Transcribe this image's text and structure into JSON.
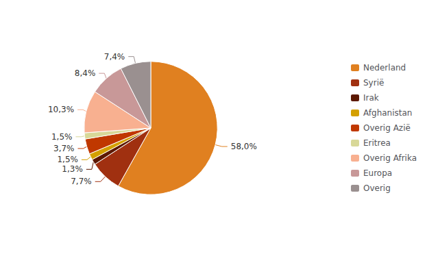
{
  "chart_data": {
    "type": "pie",
    "categories": [
      "Nederland",
      "Syrië",
      "Irak",
      "Afghanistan",
      "Overig Azië",
      "Eritrea",
      "Overig Afrika",
      "Europa",
      "Overig"
    ],
    "values": [
      58.0,
      7.7,
      1.3,
      1.5,
      3.7,
      1.5,
      10.3,
      8.4,
      7.4
    ],
    "value_labels": [
      "58,0%",
      "7,7%",
      "1,3%",
      "1,5%",
      "3,7%",
      "1,5%",
      "10,3%",
      "8,4%",
      "7,4%"
    ],
    "colors": [
      "#E08020",
      "#A03010",
      "#5C1800",
      "#D4A000",
      "#C03800",
      "#D8D898",
      "#F8B090",
      "#C89898",
      "#9A9090"
    ],
    "data_labels": true,
    "legend": "right"
  }
}
